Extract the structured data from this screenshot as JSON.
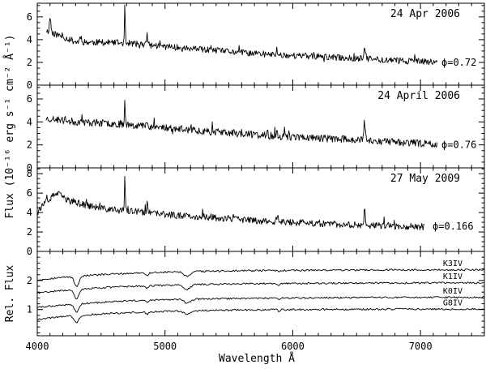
{
  "chart_data": {
    "type": "line",
    "shared_x": {
      "label": "Wavelength Å",
      "range": [
        4000,
        7500
      ],
      "ticks": [
        4000,
        5000,
        6000,
        7000
      ],
      "tick_labels": [
        "4000",
        "5000",
        "6000",
        "7000"
      ]
    },
    "flux_axis_label": "Flux (10⁻¹⁶ erg s⁻¹ cm⁻² Å⁻¹)",
    "rel_axis_label": "Rel. Flux",
    "panels": [
      {
        "date": "24 Apr 2006",
        "phase_label": "ϕ=0.72",
        "ylim": [
          0,
          7.2
        ],
        "y_ticks": [
          0,
          2,
          4,
          6
        ],
        "y_tick_labels": [
          "0",
          "2",
          "4",
          "6"
        ],
        "x_extent": [
          4070,
          7130
        ],
        "continuum": [
          [
            4070,
            4.8
          ],
          [
            4300,
            3.8
          ],
          [
            4700,
            3.7
          ],
          [
            5200,
            3.2
          ],
          [
            5800,
            2.7
          ],
          [
            6500,
            2.35
          ],
          [
            7130,
            2.0
          ]
        ],
        "lines": [
          {
            "x": 4101,
            "height": 1.3,
            "width": 8
          },
          {
            "x": 4340,
            "height": 0.5,
            "width": 10
          },
          {
            "x": 4686,
            "height": 3.3,
            "width": 4
          },
          {
            "x": 4861,
            "height": 1.0,
            "width": 6
          },
          {
            "x": 5876,
            "height": 0.5,
            "width": 6
          },
          {
            "x": 6563,
            "height": 0.9,
            "width": 10
          }
        ],
        "noise": 0.28,
        "seed": 11
      },
      {
        "date": "24 April 2006",
        "phase_label": "ϕ=0.76",
        "ylim": [
          0,
          7.2
        ],
        "y_ticks": [
          0,
          2,
          4,
          6
        ],
        "y_tick_labels": [
          "0",
          "2",
          "4",
          "6"
        ],
        "x_extent": [
          4070,
          7130
        ],
        "continuum": [
          [
            4070,
            4.3
          ],
          [
            4300,
            4.0
          ],
          [
            4700,
            3.8
          ],
          [
            5200,
            3.3
          ],
          [
            5800,
            2.8
          ],
          [
            6500,
            2.45
          ],
          [
            7130,
            2.05
          ]
        ],
        "lines": [
          {
            "x": 4686,
            "height": 2.1,
            "width": 5
          },
          {
            "x": 4861,
            "height": 0.6,
            "width": 6
          },
          {
            "x": 5876,
            "height": 0.6,
            "width": 6
          },
          {
            "x": 6563,
            "height": 1.2,
            "width": 9
          }
        ],
        "noise": 0.32,
        "seed": 23
      },
      {
        "date": "27 May 2009",
        "phase_label": "ϕ=0.166",
        "ylim": [
          0,
          8.6
        ],
        "y_ticks": [
          0,
          2,
          4,
          6,
          8
        ],
        "y_tick_labels": [
          "0",
          "2",
          "4",
          "6",
          "8"
        ],
        "x_extent": [
          4000,
          7030
        ],
        "continuum": [
          [
            4000,
            4.2
          ],
          [
            4150,
            6.0
          ],
          [
            4250,
            5.2
          ],
          [
            4500,
            4.4
          ],
          [
            5000,
            3.8
          ],
          [
            5800,
            3.1
          ],
          [
            6500,
            2.7
          ],
          [
            7030,
            2.55
          ]
        ],
        "lines": [
          {
            "x": 4686,
            "height": 4.0,
            "width": 4
          },
          {
            "x": 4861,
            "height": 1.0,
            "width": 6
          },
          {
            "x": 5876,
            "height": 0.5,
            "width": 6
          },
          {
            "x": 6563,
            "height": 1.8,
            "width": 8
          }
        ],
        "noise": 0.35,
        "seed": 37
      }
    ],
    "reference_panel": {
      "ylim": [
        0.1,
        3.0
      ],
      "y_ticks": [
        1,
        2
      ],
      "y_tick_labels": [
        "1",
        "2"
      ],
      "x_extent": [
        4000,
        7500
      ],
      "series": [
        {
          "name": "K3IV",
          "level": 2.3,
          "dip": 0.5
        },
        {
          "name": "K1IV",
          "level": 1.85,
          "dip": 0.45
        },
        {
          "name": "K0IV",
          "level": 1.35,
          "dip": 0.4
        },
        {
          "name": "G8IV",
          "level": 0.95,
          "dip": 0.35
        }
      ]
    }
  }
}
